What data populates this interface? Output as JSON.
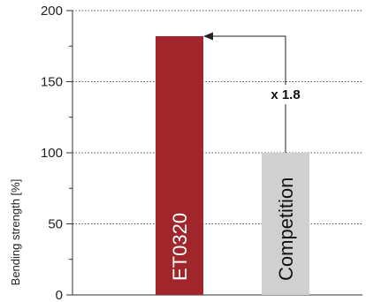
{
  "chart_data": {
    "type": "bar",
    "categories": [
      "ET0320",
      "Competition"
    ],
    "values": [
      182,
      100
    ],
    "title": "",
    "xlabel": "",
    "ylabel": "Bending strength [%]",
    "ylim": [
      0,
      200
    ],
    "yticks": [
      0,
      50,
      100,
      150,
      200
    ],
    "grid": "horizontal dotted",
    "bar_colors": [
      "#a0262b",
      "#d0d0d0"
    ],
    "bar_label_colors": [
      "#ffffff",
      "#111111"
    ],
    "annotation": {
      "text": "x 1.8",
      "from_category": "Competition",
      "to_category": "ET0320"
    }
  }
}
